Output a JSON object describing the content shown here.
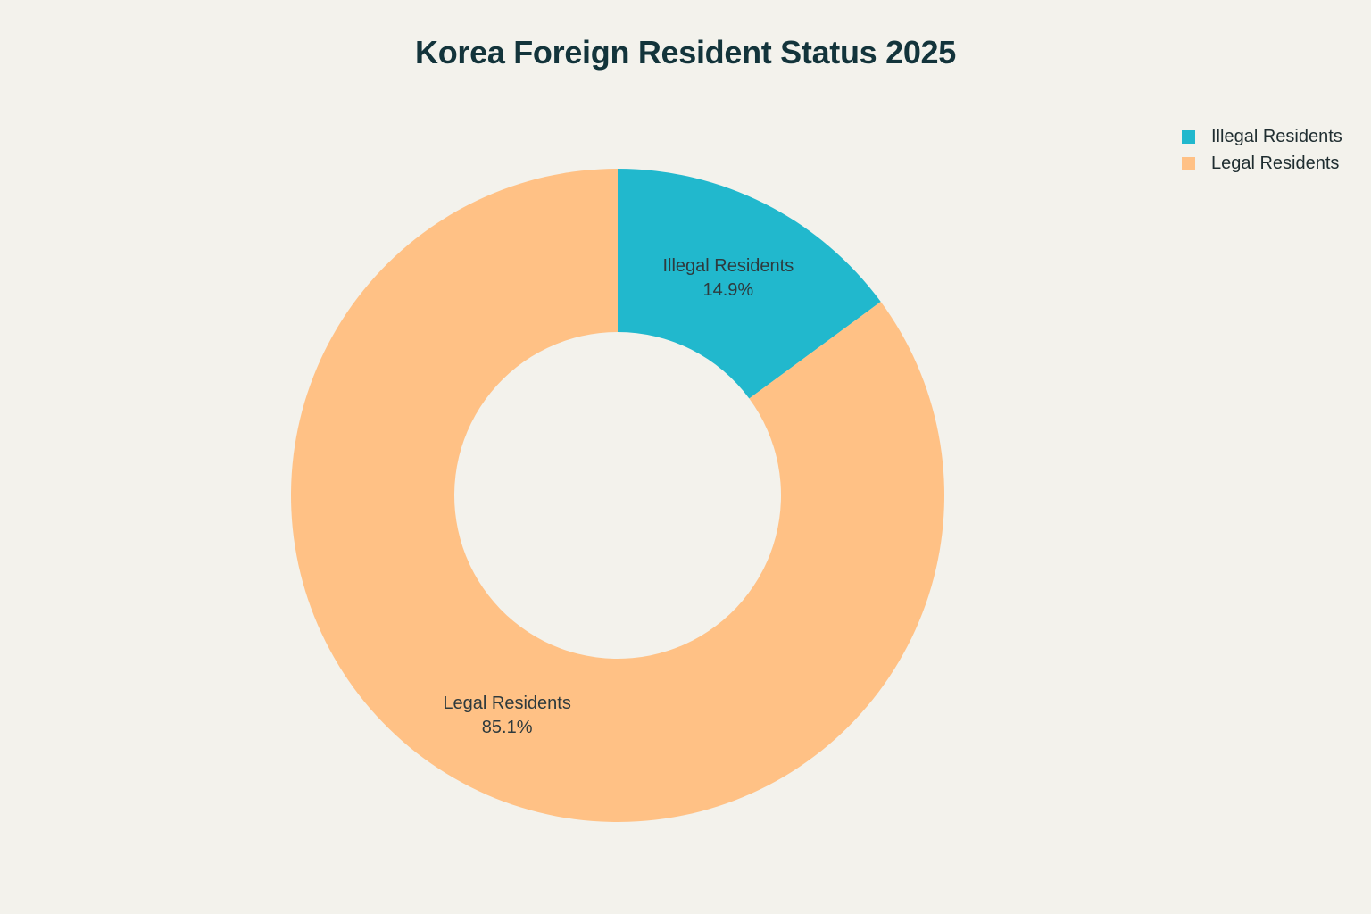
{
  "chart_data": {
    "type": "pie",
    "title": "Korea Foreign Resident Status 2025",
    "donut": true,
    "legend_position": "top-right",
    "slices": [
      {
        "label": "Illegal Residents",
        "value": 14.9,
        "display": "14.9%",
        "color": "#21b8cd"
      },
      {
        "label": "Legal Residents",
        "value": 85.1,
        "display": "85.1%",
        "color": "#ffc185"
      }
    ]
  },
  "legend": {
    "items": [
      {
        "label": "Illegal Residents",
        "color": "#21b8cd"
      },
      {
        "label": "Legal Residents",
        "color": "#ffc185"
      }
    ]
  },
  "background": "#f3f2ec"
}
